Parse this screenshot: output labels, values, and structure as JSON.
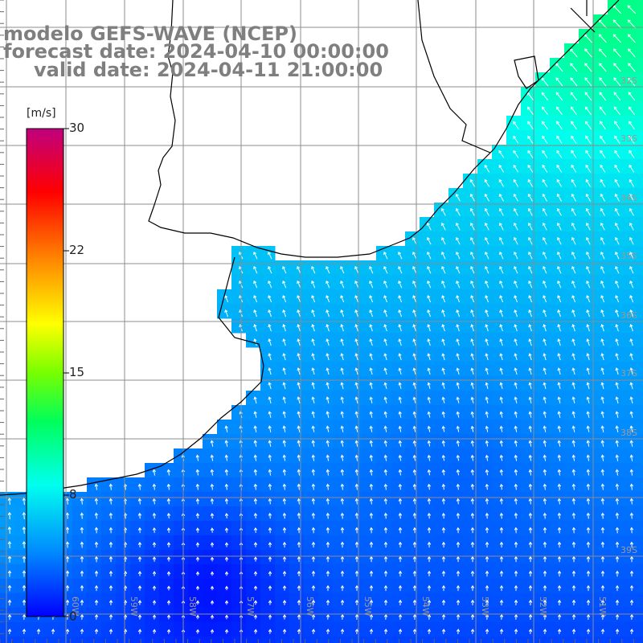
{
  "title": {
    "line1": "modelo GEFS-WAVE (NCEP)",
    "line2": "forecast date: 2024-04-10 00:00:00",
    "line3": "valid date: 2024-04-11 21:00:00"
  },
  "colorbar": {
    "unit": "[m/s]",
    "ticks": [
      "30",
      "22",
      "15",
      "8",
      "0"
    ],
    "colors": [
      "#0000ff",
      "#0088ff",
      "#00ffee",
      "#00ff00",
      "#ffff00",
      "#ff8800",
      "#ff0000",
      "#c0007f"
    ]
  },
  "grid": {
    "lon_labels": [
      "60W",
      "59W",
      "58W",
      "57W",
      "56W",
      "55W",
      "54W",
      "53W",
      "52W",
      "51W"
    ],
    "lat_labels": [
      "32S",
      "33S",
      "34S",
      "35S",
      "36S",
      "37S",
      "38S",
      "39S"
    ]
  },
  "colors": {
    "land": "#ffffff",
    "coastline": "#000000",
    "grid": "#8c8c8c",
    "arrow": "#ffffff",
    "title": "#7f7f7f"
  }
}
